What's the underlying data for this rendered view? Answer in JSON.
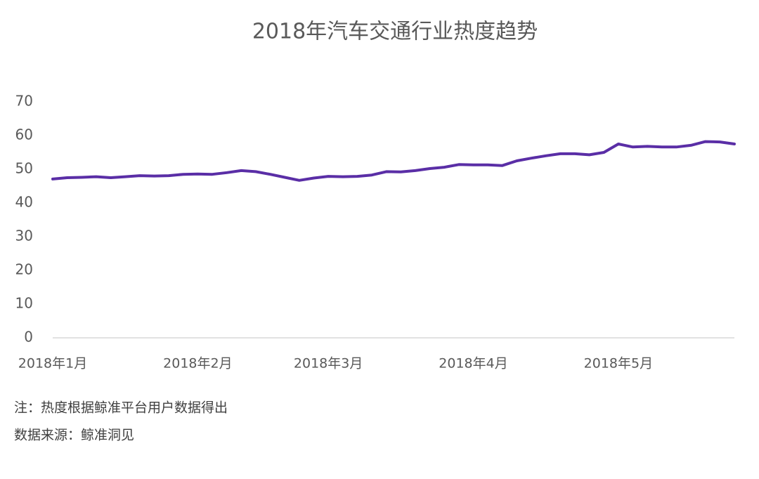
{
  "chart_data": {
    "type": "line",
    "title": "2018年汽车交通行业热度趋势",
    "categories": [
      "2018年1月",
      null,
      null,
      null,
      null,
      null,
      null,
      null,
      null,
      null,
      "2018年2月",
      null,
      null,
      null,
      null,
      null,
      null,
      null,
      null,
      "2018年3月",
      null,
      null,
      null,
      null,
      null,
      null,
      null,
      null,
      null,
      "2018年4月",
      null,
      null,
      null,
      null,
      null,
      null,
      null,
      null,
      null,
      "2018年5月",
      null,
      null,
      null,
      null,
      null,
      null,
      null,
      null
    ],
    "series": [
      {
        "name": "热度",
        "color": "#5a2ea6",
        "values": [
          47.1,
          47.5,
          47.6,
          47.8,
          47.5,
          47.8,
          48.1,
          48.0,
          48.1,
          48.5,
          48.6,
          48.5,
          49.0,
          49.6,
          49.3,
          48.5,
          47.6,
          46.7,
          47.4,
          47.9,
          47.8,
          47.9,
          48.3,
          49.3,
          49.2,
          49.6,
          50.2,
          50.6,
          51.4,
          51.3,
          51.3,
          51.1,
          52.5,
          53.3,
          54.0,
          54.6,
          54.6,
          54.3,
          55.0,
          57.5,
          56.6,
          56.8,
          56.6,
          56.6,
          57.1,
          58.2,
          58.1,
          57.5
        ]
      }
    ],
    "ylim": [
      0,
      70
    ],
    "yticks": [
      0,
      10,
      20,
      30,
      40,
      50,
      60,
      70
    ],
    "grid": false,
    "notes": [
      "注：热度根据鲸准平台用户数据得出",
      "数据来源：鲸准洞见"
    ]
  }
}
